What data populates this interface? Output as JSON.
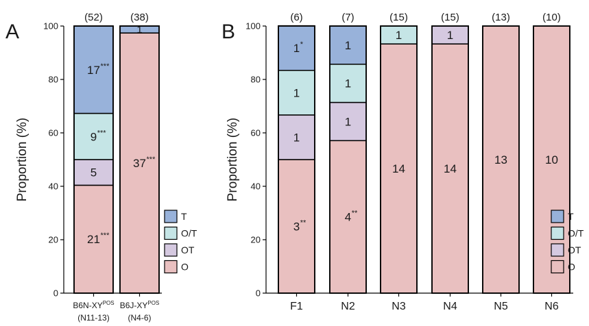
{
  "chart_data": [
    {
      "type": "bar",
      "stacked": true,
      "panel": "A",
      "ylabel": "Proportion (%)",
      "ylim": [
        0,
        100
      ],
      "yticks": [
        "0",
        "20",
        "40",
        "60",
        "80",
        "100"
      ],
      "categories": [
        {
          "main": "B6N-XY",
          "sup": "POS",
          "sub": "(N11-13)"
        },
        {
          "main": "B6J-XY",
          "sup": "POS",
          "sub": "(N4-6)"
        }
      ],
      "n_labels": [
        "(52)",
        "(38)"
      ],
      "series": [
        {
          "name": "O",
          "values": [
            40.4,
            97.4
          ],
          "labels": [
            "21",
            "37"
          ],
          "sig": [
            "***",
            "***"
          ]
        },
        {
          "name": "OT",
          "values": [
            9.6,
            0
          ],
          "labels": [
            "5",
            ""
          ],
          "sig": [
            "",
            ""
          ]
        },
        {
          "name": "O/T",
          "values": [
            17.3,
            0
          ],
          "labels": [
            "9",
            ""
          ],
          "sig": [
            "***",
            ""
          ]
        },
        {
          "name": "T",
          "values": [
            32.7,
            2.6
          ],
          "labels": [
            "17",
            "1"
          ],
          "sig": [
            "***",
            ""
          ]
        }
      ],
      "legend": [
        "T",
        "O/T",
        "OT",
        "O"
      ],
      "legend_position": "right-bottom"
    },
    {
      "type": "bar",
      "stacked": true,
      "panel": "B",
      "ylabel": "Proportion (%)",
      "ylim": [
        0,
        100
      ],
      "yticks": [
        "0",
        "20",
        "40",
        "60",
        "80",
        "100"
      ],
      "categories": [
        "F1",
        "N2",
        "N3",
        "N4",
        "N5",
        "N6"
      ],
      "n_labels": [
        "(6)",
        "(7)",
        "(15)",
        "(15)",
        "(13)",
        "(10)"
      ],
      "series": [
        {
          "name": "O",
          "values": [
            50.0,
            57.1,
            93.3,
            93.3,
            100,
            100
          ],
          "labels": [
            "3",
            "4",
            "14",
            "14",
            "13",
            "10"
          ],
          "sig": [
            "**",
            "**",
            "",
            "",
            "",
            ""
          ]
        },
        {
          "name": "OT",
          "values": [
            16.7,
            14.3,
            0,
            6.7,
            0,
            0
          ],
          "labels": [
            "1",
            "1",
            "",
            "1",
            "",
            ""
          ],
          "sig": [
            "",
            "",
            "",
            "",
            "",
            ""
          ]
        },
        {
          "name": "O/T",
          "values": [
            16.7,
            14.3,
            6.7,
            0,
            0,
            0
          ],
          "labels": [
            "1",
            "1",
            "1",
            "",
            "",
            ""
          ],
          "sig": [
            "",
            "",
            "",
            "",
            "",
            ""
          ]
        },
        {
          "name": "T",
          "values": [
            16.7,
            14.3,
            0,
            0,
            0,
            0
          ],
          "labels": [
            "1",
            "1",
            "",
            "",
            "",
            ""
          ],
          "sig": [
            "*",
            "",
            "",
            "",
            "",
            ""
          ]
        }
      ],
      "legend": [
        "T",
        "O/T",
        "OT",
        "O"
      ],
      "legend_position": "right-bottom"
    }
  ],
  "colors": {
    "T": "#98b2da",
    "O/T": "#c5e5e6",
    "OT": "#d5c9e0",
    "O": "#e9c0c0"
  }
}
